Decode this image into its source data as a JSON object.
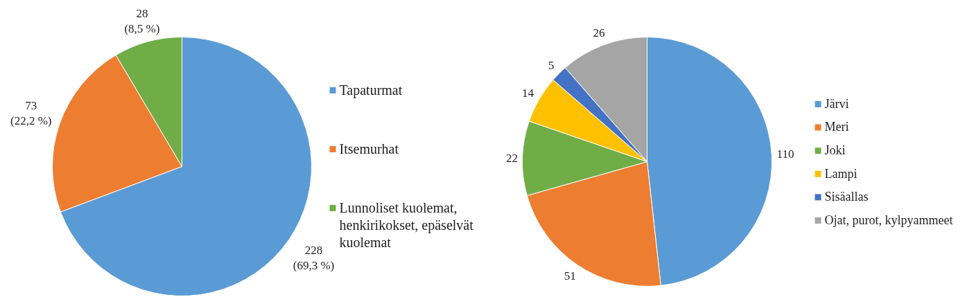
{
  "chart_data": [
    {
      "type": "pie",
      "categories": [
        "Tapaturmat",
        "Itsemurhat",
        "Lunnoliset kuolemat, henkirikokset, epäselvät kuolemat"
      ],
      "values": [
        228,
        73,
        28
      ],
      "colors": [
        "#5b9bd5",
        "#ed7d31",
        "#70ad47"
      ],
      "value_labels": [
        "228\n(69,3 %)",
        "73\n(22,2 %)",
        "28\n(8,5 %)"
      ],
      "legend": "right"
    },
    {
      "type": "pie",
      "categories": [
        "Järvi",
        "Meri",
        "Joki",
        "Lampi",
        "Sisäallas",
        "Ojat, purot, kylpyammeet"
      ],
      "values": [
        110,
        51,
        22,
        14,
        5,
        26
      ],
      "colors": [
        "#5b9bd5",
        "#ed7d31",
        "#70ad47",
        "#ffc000",
        "#4472c4",
        "#a5a5a5"
      ],
      "data_labels": true,
      "legend": "right"
    }
  ]
}
